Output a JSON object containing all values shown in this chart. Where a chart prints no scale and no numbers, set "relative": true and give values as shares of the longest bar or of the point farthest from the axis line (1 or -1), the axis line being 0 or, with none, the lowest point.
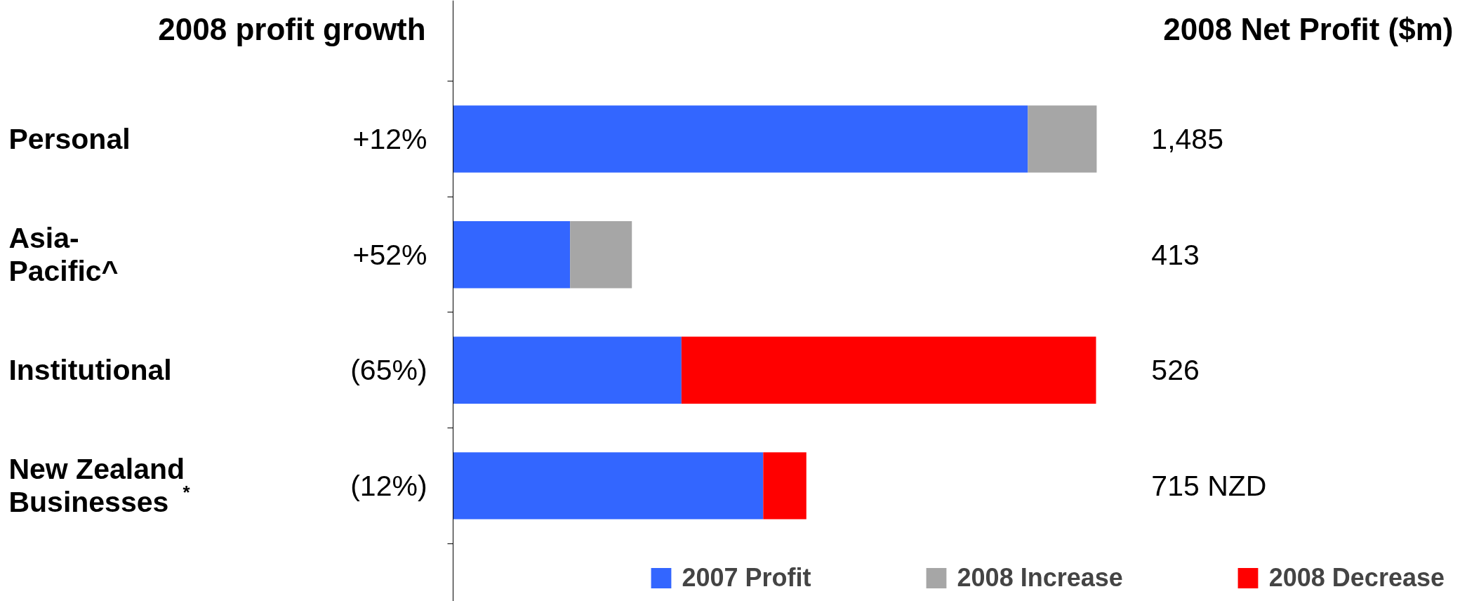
{
  "chart_data": {
    "type": "bar",
    "orientation": "horizontal",
    "stacked": true,
    "relative": true,
    "categories": [
      "Personal",
      "Asia-\nPacific^",
      "Institutional",
      "New Zealand\nBusinesses$^{*}$"
    ],
    "series": [
      {
        "name": "2007 Profit",
        "color": "#3366ff",
        "values": [
          0.893,
          0.182,
          0.355,
          0.482
        ]
      },
      {
        "name": "2008 Increase",
        "color": "#a6a6a6",
        "values": [
          0.107,
          0.096,
          null,
          null
        ]
      },
      {
        "name": "2008 Decrease",
        "color": "#ff0000",
        "values": [
          null,
          null,
          0.644,
          0.067
        ]
      }
    ],
    "annotations": [
      "2008 profit growth",
      "+12%",
      "+52%",
      "(65%)",
      "(12%)",
      "2008 Net Profit ($m)",
      "1,485",
      "413",
      "526",
      "715 NZD"
    ],
    "legend": "bottom"
  }
}
